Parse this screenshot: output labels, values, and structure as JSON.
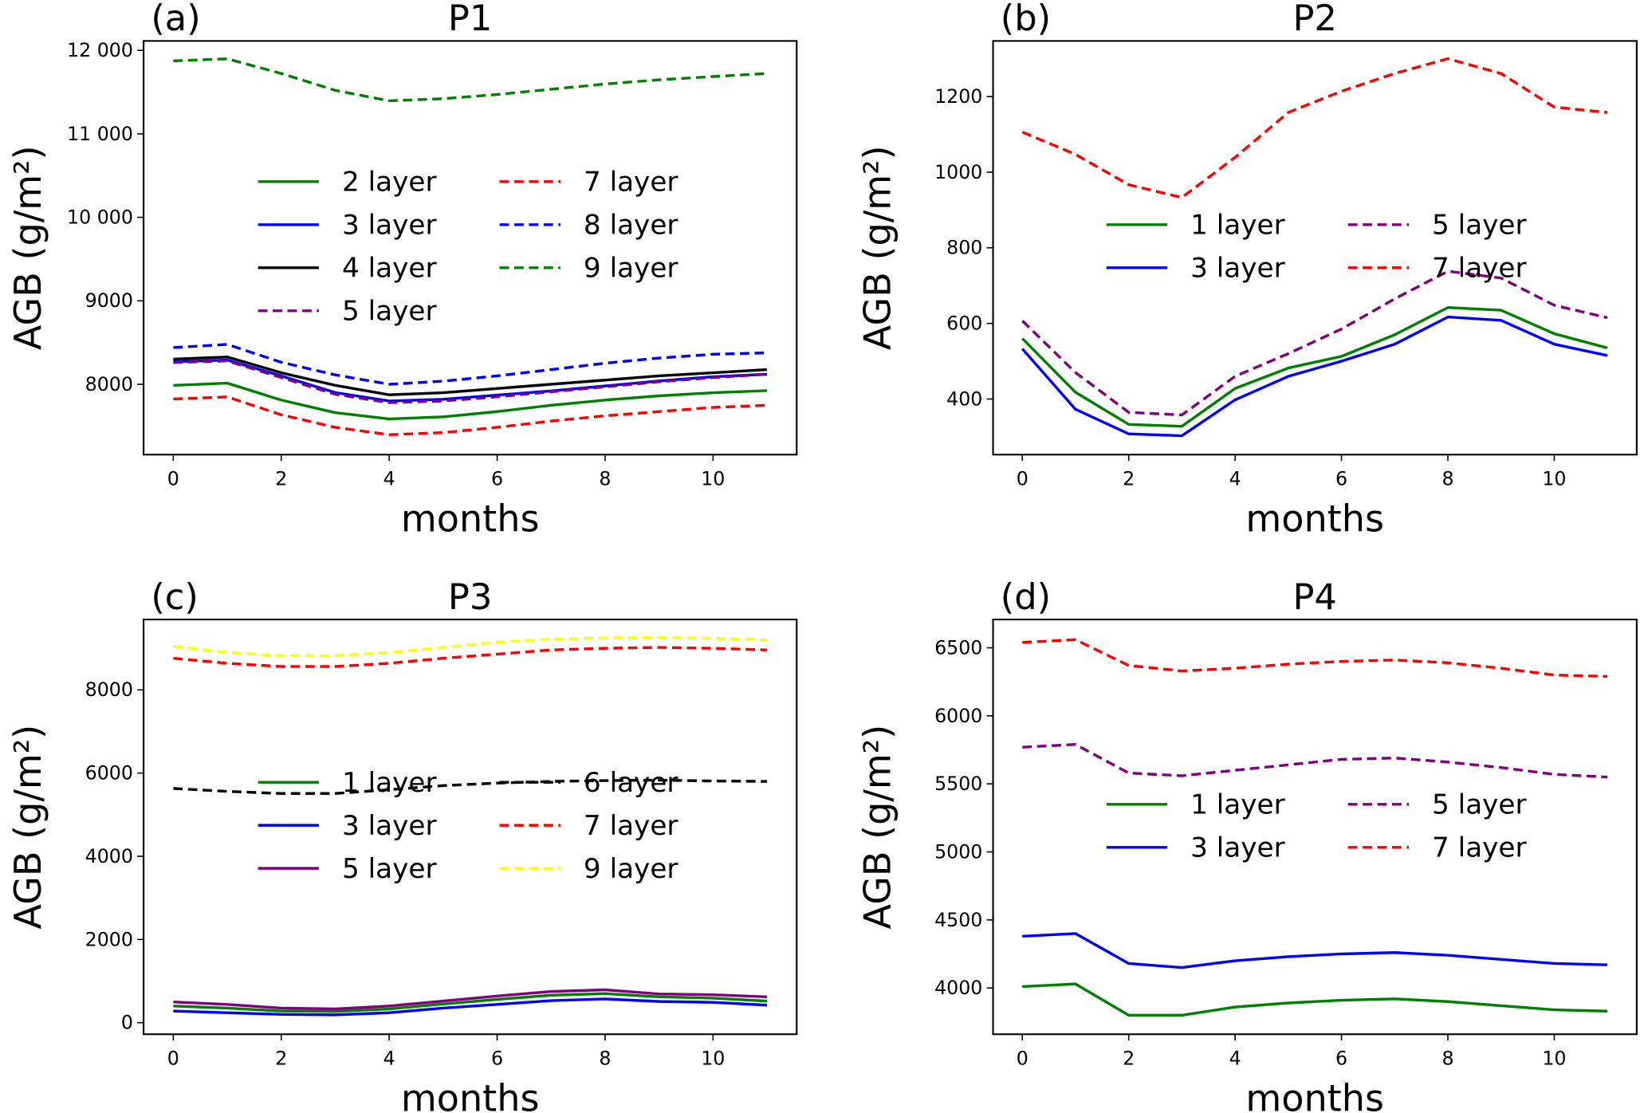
{
  "chart_data": [
    {
      "type": "line",
      "panel_label": "(a)",
      "title": "P1",
      "xlabel": "months",
      "ylabel": "AGB (g/m²)",
      "x": [
        0,
        1,
        2,
        3,
        4,
        5,
        6,
        7,
        8,
        9,
        10,
        11
      ],
      "xticks": [
        "0",
        "2",
        "4",
        "6",
        "8",
        "10"
      ],
      "yticks": [
        8000,
        9000,
        10000,
        11000,
        12000
      ],
      "ytick_labels": [
        "8000",
        "9000",
        "10 000",
        "11 000",
        "12 000"
      ],
      "ylim": [
        7157,
        12113
      ],
      "xlim": [
        -0.55,
        11.55
      ],
      "legend_position": "upper-center",
      "grid": false,
      "series": [
        {
          "name": "2 layer",
          "color": "#008000",
          "style": "solid",
          "values": [
            7987,
            8013,
            7811,
            7660,
            7585,
            7610,
            7673,
            7748,
            7811,
            7862,
            7899,
            7924
          ]
        },
        {
          "name": "3 layer",
          "color": "#0000ff",
          "style": "solid",
          "values": [
            8270,
            8290,
            8100,
            7900,
            7800,
            7820,
            7870,
            7920,
            7980,
            8040,
            8090,
            8120
          ]
        },
        {
          "name": "4 layer",
          "color": "#000000",
          "style": "solid",
          "values": [
            8302,
            8327,
            8138,
            7987,
            7874,
            7899,
            7950,
            8000,
            8050,
            8101,
            8138,
            8176
          ]
        },
        {
          "name": "5 layer",
          "color": "#800080",
          "style": "dashed",
          "values": [
            8260,
            8280,
            8080,
            7880,
            7780,
            7800,
            7850,
            7910,
            7970,
            8030,
            8080,
            8120
          ]
        },
        {
          "name": "7 layer",
          "color": "#ff0000",
          "style": "dashed",
          "values": [
            7824,
            7849,
            7635,
            7484,
            7396,
            7421,
            7484,
            7560,
            7623,
            7673,
            7723,
            7748
          ]
        },
        {
          "name": "8 layer",
          "color": "#0000ff",
          "style": "dashed",
          "values": [
            8440,
            8478,
            8264,
            8113,
            8000,
            8038,
            8101,
            8176,
            8252,
            8314,
            8360,
            8377
          ]
        },
        {
          "name": "9 layer",
          "color": "#008000",
          "style": "dashed",
          "values": [
            11874,
            11899,
            11723,
            11522,
            11396,
            11421,
            11472,
            11535,
            11597,
            11648,
            11686,
            11723
          ]
        }
      ]
    },
    {
      "type": "line",
      "panel_label": "(b)",
      "title": "P2",
      "xlabel": "months",
      "ylabel": "AGB (g/m²)",
      "x": [
        0,
        1,
        2,
        3,
        4,
        5,
        6,
        7,
        8,
        9,
        10,
        11
      ],
      "xticks": [
        "0",
        "2",
        "4",
        "6",
        "8",
        "10"
      ],
      "yticks": [
        400,
        600,
        800,
        1000,
        1200
      ],
      "ytick_labels": [
        "400",
        "600",
        "800",
        "1000",
        "1200"
      ],
      "ylim": [
        253,
        1347
      ],
      "xlim": [
        -0.55,
        11.55
      ],
      "legend_position": "center",
      "grid": false,
      "series": [
        {
          "name": "1 layer",
          "color": "#008000",
          "style": "solid",
          "values": [
            560,
            418,
            333,
            328,
            428,
            482,
            513,
            570,
            642,
            635,
            573,
            535
          ]
        },
        {
          "name": "3 layer",
          "color": "#0000ff",
          "style": "solid",
          "values": [
            533,
            373,
            308,
            303,
            398,
            460,
            500,
            545,
            617,
            608,
            545,
            515
          ]
        },
        {
          "name": "5 layer",
          "color": "#800080",
          "style": "dashed",
          "values": [
            607,
            470,
            365,
            358,
            460,
            520,
            585,
            665,
            738,
            720,
            648,
            615
          ]
        },
        {
          "name": "7 layer",
          "color": "#ff0000",
          "style": "dashed",
          "values": [
            1106,
            1047,
            967,
            933,
            1039,
            1158,
            1214,
            1261,
            1300,
            1261,
            1172,
            1158
          ]
        }
      ]
    },
    {
      "type": "line",
      "panel_label": "(c)",
      "title": "P3",
      "xlabel": "months",
      "ylabel": "AGB (g/m²)",
      "x": [
        0,
        1,
        2,
        3,
        4,
        5,
        6,
        7,
        8,
        9,
        10,
        11
      ],
      "xticks": [
        "0",
        "2",
        "4",
        "6",
        "8",
        "10"
      ],
      "yticks": [
        0,
        2000,
        4000,
        6000,
        8000
      ],
      "ytick_labels": [
        "0",
        "2000",
        "4000",
        "6000",
        "8000"
      ],
      "ylim": [
        -278,
        9692
      ],
      "xlim": [
        -0.55,
        11.55
      ],
      "legend_position": "center",
      "grid": false,
      "series": [
        {
          "name": "1 layer",
          "color": "#008000",
          "style": "solid",
          "values": [
            400,
            350,
            280,
            270,
            330,
            450,
            560,
            660,
            700,
            620,
            590,
            520
          ]
        },
        {
          "name": "3 layer",
          "color": "#0000ff",
          "style": "solid",
          "values": [
            280,
            240,
            200,
            190,
            240,
            350,
            440,
            530,
            570,
            510,
            490,
            420
          ]
        },
        {
          "name": "5 layer",
          "color": "#800080",
          "style": "solid",
          "values": [
            500,
            440,
            350,
            330,
            400,
            520,
            640,
            750,
            790,
            690,
            670,
            620
          ]
        },
        {
          "name": "6 layer",
          "color": "#000000",
          "style": "dashed",
          "values": [
            5630,
            5560,
            5510,
            5510,
            5600,
            5700,
            5760,
            5800,
            5820,
            5830,
            5810,
            5800
          ]
        },
        {
          "name": "7 layer",
          "color": "#ff0000",
          "style": "dashed",
          "values": [
            8760,
            8640,
            8560,
            8560,
            8640,
            8760,
            8860,
            8960,
            9000,
            9020,
            9000,
            8960
          ]
        },
        {
          "name": "9 layer",
          "color": "#ffff00",
          "style": "dashed",
          "values": [
            9050,
            8900,
            8820,
            8820,
            8900,
            9020,
            9150,
            9220,
            9250,
            9260,
            9240,
            9200
          ]
        }
      ]
    },
    {
      "type": "line",
      "panel_label": "(d)",
      "title": "P4",
      "xlabel": "months",
      "ylabel": "AGB (g/m²)",
      "x": [
        0,
        1,
        2,
        3,
        4,
        5,
        6,
        7,
        8,
        9,
        10,
        11
      ],
      "xticks": [
        "0",
        "2",
        "4",
        "6",
        "8",
        "10"
      ],
      "yticks": [
        4000,
        4500,
        5000,
        5500,
        6000,
        6500
      ],
      "ytick_labels": [
        "4000",
        "4500",
        "5000",
        "5500",
        "6000",
        "6500"
      ],
      "ylim": [
        3660,
        6708
      ],
      "xlim": [
        -0.55,
        11.55
      ],
      "legend_position": "center",
      "grid": false,
      "series": [
        {
          "name": "1 layer",
          "color": "#008000",
          "style": "solid",
          "values": [
            4010,
            4030,
            3800,
            3800,
            3860,
            3890,
            3910,
            3920,
            3900,
            3870,
            3840,
            3830
          ]
        },
        {
          "name": "3 layer",
          "color": "#0000ff",
          "style": "solid",
          "values": [
            4380,
            4400,
            4180,
            4150,
            4200,
            4230,
            4250,
            4260,
            4240,
            4210,
            4180,
            4170
          ]
        },
        {
          "name": "5 layer",
          "color": "#800080",
          "style": "dashed",
          "values": [
            5770,
            5790,
            5580,
            5560,
            5600,
            5640,
            5680,
            5690,
            5660,
            5620,
            5570,
            5550
          ]
        },
        {
          "name": "7 layer",
          "color": "#ff0000",
          "style": "dashed",
          "values": [
            6540,
            6560,
            6370,
            6330,
            6350,
            6380,
            6400,
            6410,
            6390,
            6350,
            6300,
            6290
          ]
        }
      ]
    }
  ]
}
